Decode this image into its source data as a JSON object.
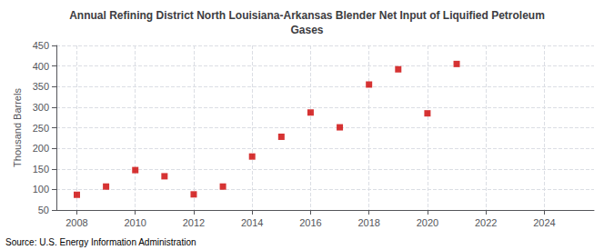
{
  "chart_data": {
    "type": "scatter",
    "title": "Annual Refining District North Louisiana-Arkansas Blender Net Input of Liquified Petroleum\nGases",
    "ylabel": "Thousand Barrels",
    "annotation": "Source: U.S. Energy Information Administration",
    "x": [
      2008,
      2009,
      2010,
      2011,
      2012,
      2013,
      2014,
      2015,
      2016,
      2017,
      2018,
      2019,
      2020,
      2021
    ],
    "values": [
      87,
      107,
      147,
      132,
      88,
      107,
      180,
      228,
      287,
      251,
      355,
      392,
      285,
      405
    ],
    "color": "#cc0000",
    "marker": "square",
    "xlim": [
      2007.3,
      2025.7
    ],
    "xticks": [
      2008,
      2010,
      2012,
      2014,
      2016,
      2018,
      2020,
      2022,
      2024
    ],
    "ylim": [
      50,
      450
    ],
    "yticks": [
      50,
      100,
      150,
      200,
      250,
      300,
      350,
      400,
      450
    ],
    "grid": true
  }
}
